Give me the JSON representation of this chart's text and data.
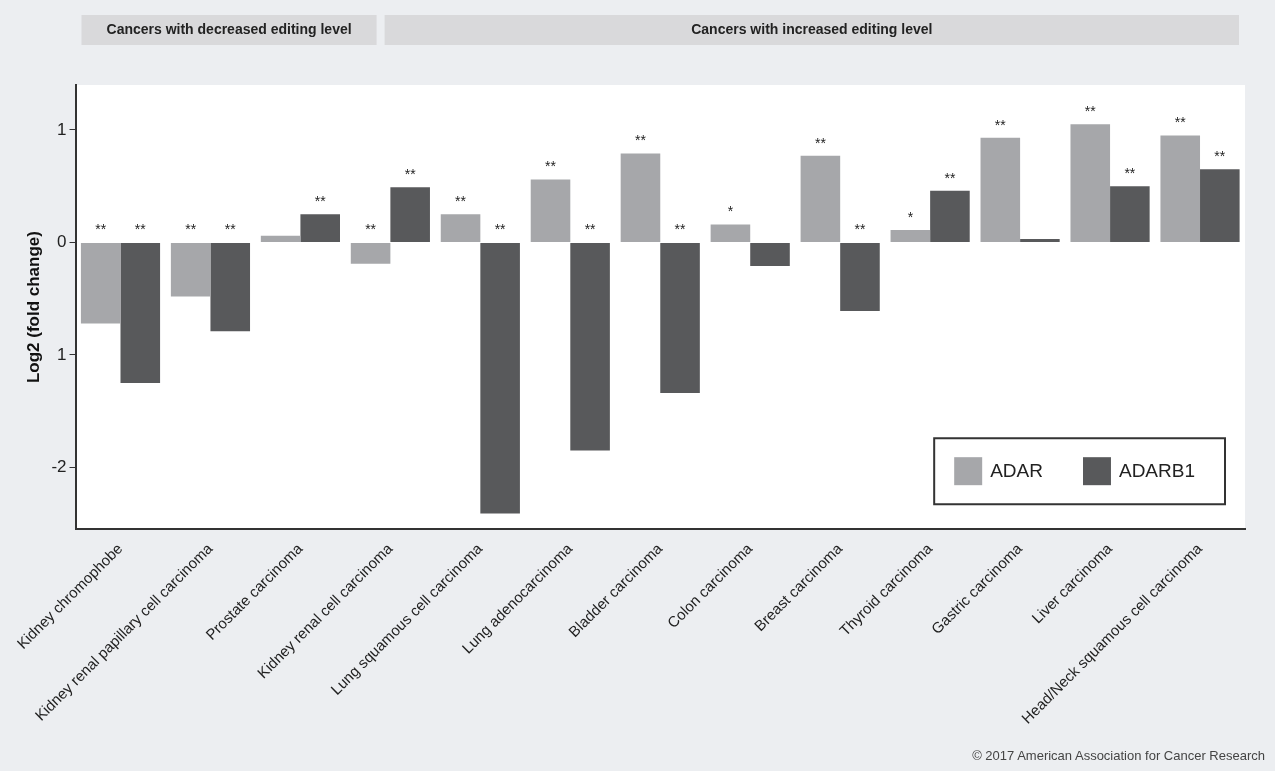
{
  "chart_data": {
    "type": "bar",
    "ylabel": "Log2 (fold change)",
    "categories": [
      "Kidney chromophobe",
      "Kidney renal papillary cell carcinoma",
      "Prostate carcinoma",
      "Kidney renal cell carcinoma",
      "Lung squamous cell carcinoma",
      "Lung adenocarcinoma",
      "Bladder carcinoma",
      "Colon carcinoma",
      "Breast carcinoma",
      "Thyroid carcinoma",
      "Gastric carcinoma",
      "Liver carcinoma",
      "Head/Neck squamous cell carcinoma"
    ],
    "series": [
      {
        "name": "ADAR",
        "color": "#a6a7aa",
        "values": [
          -0.72,
          -0.48,
          0.06,
          -0.19,
          0.25,
          0.56,
          0.79,
          0.16,
          0.77,
          0.11,
          0.93,
          1.05,
          0.95
        ],
        "value_labels": [
          "**",
          "**",
          null,
          "**",
          "**",
          "**",
          "**",
          "*",
          "**",
          "*",
          "**",
          "**",
          "**"
        ]
      },
      {
        "name": "ADARB1",
        "color": "#58595b",
        "values": [
          -1.25,
          -0.79,
          0.25,
          0.49,
          -2.41,
          -1.85,
          -1.34,
          -0.21,
          -0.61,
          0.46,
          0.03,
          0.5,
          0.65
        ],
        "value_labels": [
          "**",
          "**",
          "**",
          "**",
          "**",
          "**",
          "**",
          null,
          "**",
          "**",
          null,
          "**",
          "**"
        ]
      }
    ],
    "ylim": [
      -2.55,
      1.4
    ],
    "yticks": [
      1,
      0,
      {
        "value": -1,
        "label": "1"
      },
      -2
    ],
    "grid": false,
    "legend": "bottom right",
    "annotations": [
      "Cancers with decreased editing level",
      "Cancers with increased editing level",
      "© 2017 American Association for Cancer Research"
    ]
  }
}
